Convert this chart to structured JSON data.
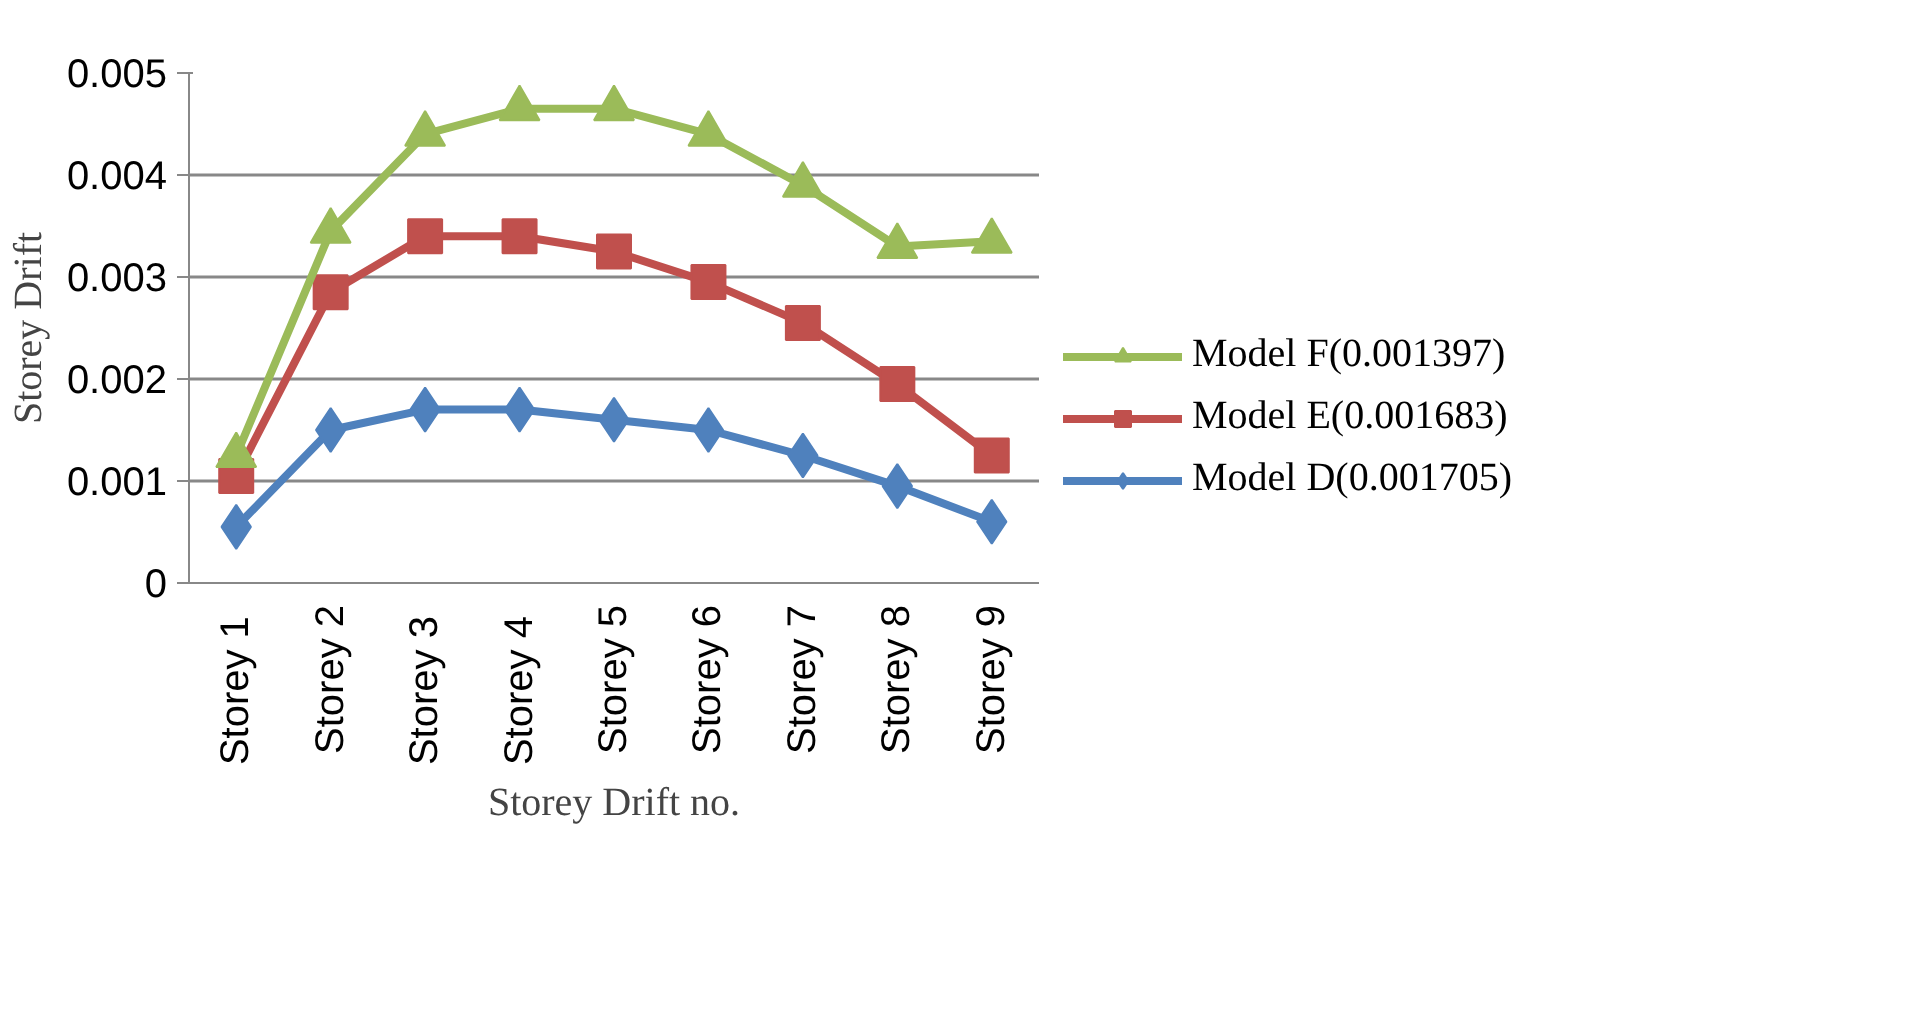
{
  "chart_data": {
    "type": "line",
    "xlabel": "Storey Drift no.",
    "ylabel": "Storey Drift",
    "categories": [
      "Storey  1",
      "Storey 2",
      "Storey  3",
      "Storey  4",
      "Storey 5",
      "Storey 6",
      "Storey 7",
      "Storey 8",
      "Storey 9"
    ],
    "series": [
      {
        "name": "Model F(0.001397)",
        "color": "#9bbb59",
        "marker": "triangle",
        "values": [
          0.00125,
          0.00345,
          0.0044,
          0.00465,
          0.00465,
          0.0044,
          0.0039,
          0.0033,
          0.00335
        ]
      },
      {
        "name": "Model E(0.001683)",
        "color": "#c0504d",
        "marker": "square",
        "values": [
          0.00105,
          0.00285,
          0.0034,
          0.0034,
          0.00325,
          0.00295,
          0.00255,
          0.00195,
          0.00125
        ]
      },
      {
        "name": "Model D(0.001705)",
        "color": "#4f81bd",
        "marker": "diamond",
        "values": [
          0.00055,
          0.0015,
          0.0017,
          0.0017,
          0.0016,
          0.0015,
          0.00125,
          0.00095,
          0.0006
        ]
      }
    ],
    "ylim": [
      0,
      0.005
    ],
    "yticks": [
      0,
      0.001,
      0.002,
      0.003,
      0.004,
      0.005
    ],
    "grid": "y",
    "legend": "right",
    "line_style": "solid"
  }
}
